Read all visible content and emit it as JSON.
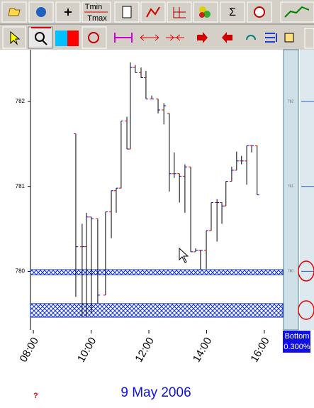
{
  "toolbar": {
    "tmin": "Tmin",
    "tmax": "Tmax",
    "sum": "Σ"
  },
  "chart_data": {
    "type": "ohlc",
    "xlabel": "9 May 2006",
    "x": [
      9.47,
      9.69,
      9.84,
      10.01,
      10.23,
      10.5,
      10.7,
      10.87,
      11.04,
      11.24,
      11.36,
      11.53,
      11.73,
      11.9,
      12.1,
      12.32,
      12.52,
      12.71,
      12.88,
      13.06,
      13.25,
      13.45,
      13.62,
      13.79,
      13.99,
      14.16,
      14.36,
      14.53,
      14.67,
      14.87,
      15.04,
      15.21,
      15.39,
      15.56,
      15.75
    ],
    "open": [
      781.62,
      780.29,
      780.29,
      780.64,
      780.62,
      779.72,
      780.7,
      780.95,
      780.98,
      781.77,
      781.44,
      782.4,
      782.34,
      782.28,
      782.03,
      782.03,
      781.9,
      781.86,
      781.15,
      781.15,
      781.12,
      781.23,
      780.23,
      780.25,
      780.25,
      780.48,
      780.81,
      780.81,
      780.77,
      781.06,
      781.19,
      781.3,
      781.3,
      781.48,
      781.48
    ],
    "high": [
      781.62,
      780.56,
      780.69,
      780.64,
      780.62,
      780.7,
      780.95,
      780.98,
      781.77,
      781.82,
      782.46,
      782.43,
      782.4,
      782.36,
      782.07,
      782.03,
      781.98,
      781.86,
      781.4,
      781.15,
      781.26,
      781.23,
      780.27,
      780.25,
      780.48,
      780.81,
      780.85,
      780.81,
      781.06,
      781.23,
      781.41,
      781.36,
      781.48,
      781.48,
      781.48
    ],
    "low": [
      779.7,
      779.47,
      779.47,
      779.51,
      779.62,
      779.72,
      780.39,
      780.69,
      780.98,
      781.44,
      781.44,
      782.34,
      782.28,
      782.03,
      782.03,
      781.86,
      781.73,
      780.94,
      781.1,
      780.81,
      780.69,
      780.23,
      780.23,
      780.02,
      780.03,
      780.48,
      780.35,
      780.56,
      780.77,
      781.06,
      781.19,
      781.26,
      781.02,
      781.4,
      780.9
    ],
    "close": [
      780.29,
      780.29,
      780.64,
      780.62,
      779.72,
      780.7,
      780.95,
      780.98,
      781.77,
      781.44,
      782.4,
      782.34,
      782.28,
      782.03,
      782.03,
      781.9,
      781.95,
      781.15,
      781.15,
      781.12,
      781.23,
      780.23,
      780.25,
      780.25,
      780.48,
      780.81,
      780.81,
      780.77,
      781.06,
      781.19,
      781.3,
      781.3,
      781.48,
      781.48,
      780.9
    ],
    "open_color": "#e00000",
    "close_color": "#0000e0",
    "bar_color": "#000000",
    "xlim": [
      7.9,
      16.64
    ],
    "ylim": [
      779.31,
      782.61
    ],
    "xticks": [
      {
        "value": 8,
        "label": "08:00"
      },
      {
        "value": 10,
        "label": "10:00"
      },
      {
        "value": 12,
        "label": "12:00"
      },
      {
        "value": 14,
        "label": "14:00"
      },
      {
        "value": 16,
        "label": "16:00"
      }
    ],
    "yticks": [
      780,
      781,
      782
    ],
    "bands": [
      [
        779.96,
        780.02
      ],
      [
        779.46,
        779.62
      ]
    ],
    "band_color": "#1030d0"
  },
  "side_panel": {
    "ticks": [
      782,
      781,
      780
    ],
    "label": "Bottom",
    "value": "0.300%"
  },
  "help": "?"
}
